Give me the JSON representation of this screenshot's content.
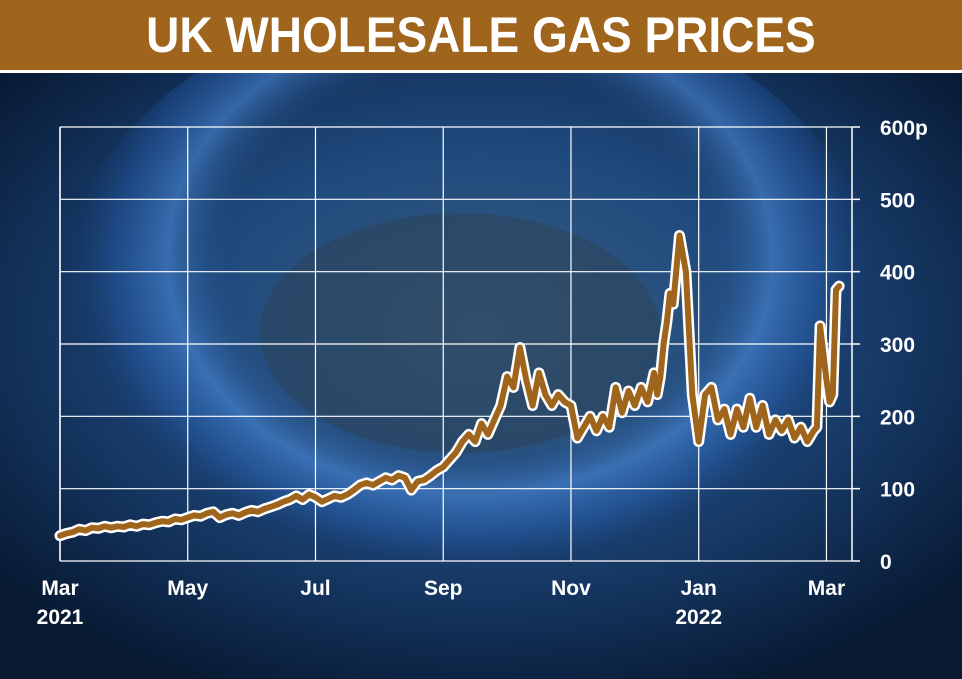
{
  "title": "UK WHOLESALE GAS PRICES",
  "colors": {
    "line": "#a0651c",
    "line_outline": "#ffffff",
    "grid": "#ffffff",
    "banner": "#a0651c"
  },
  "chart_data": {
    "type": "line",
    "title": "UK WHOLESALE GAS PRICES",
    "xlabel": "",
    "ylabel": "",
    "ylim": [
      0,
      600
    ],
    "xlim": [
      0,
      12.4
    ],
    "grid": true,
    "yticks": [
      {
        "value": 0,
        "label": "0"
      },
      {
        "value": 100,
        "label": "100"
      },
      {
        "value": 200,
        "label": "200"
      },
      {
        "value": 300,
        "label": "300"
      },
      {
        "value": 400,
        "label": "400"
      },
      {
        "value": 500,
        "label": "500"
      },
      {
        "value": 600,
        "label": "600p"
      }
    ],
    "xticks": [
      {
        "value": 0,
        "label": "Mar",
        "sublabel": "2021"
      },
      {
        "value": 2,
        "label": "May",
        "sublabel": ""
      },
      {
        "value": 4,
        "label": "Jul",
        "sublabel": ""
      },
      {
        "value": 6,
        "label": "Sep",
        "sublabel": ""
      },
      {
        "value": 8,
        "label": "Nov",
        "sublabel": ""
      },
      {
        "value": 10,
        "label": "Jan",
        "sublabel": "2022"
      },
      {
        "value": 12,
        "label": "Mar",
        "sublabel": ""
      }
    ],
    "series": [
      {
        "x": [
          0,
          0.1,
          0.2,
          0.3,
          0.4,
          0.5,
          0.6,
          0.7,
          0.8,
          0.9,
          1.0,
          1.1,
          1.2,
          1.3,
          1.4,
          1.5,
          1.6,
          1.7,
          1.8,
          1.9,
          2.0,
          2.1,
          2.2,
          2.3,
          2.4,
          2.5,
          2.6,
          2.7,
          2.8,
          2.9,
          3.0,
          3.1,
          3.2,
          3.3,
          3.4,
          3.5,
          3.6,
          3.7,
          3.8,
          3.9,
          4.0,
          4.1,
          4.2,
          4.3,
          4.4,
          4.5,
          4.6,
          4.7,
          4.8,
          4.9,
          5.0,
          5.1,
          5.2,
          5.3,
          5.4,
          5.5,
          5.6,
          5.7,
          5.8,
          5.9,
          6.0,
          6.1,
          6.2,
          6.3,
          6.4,
          6.5,
          6.6,
          6.7,
          6.8,
          6.9,
          7.0,
          7.1,
          7.2,
          7.3,
          7.4,
          7.5,
          7.6,
          7.7,
          7.8,
          7.9,
          8.0,
          8.1,
          8.2,
          8.3,
          8.4,
          8.5,
          8.6,
          8.7,
          8.8,
          8.9,
          9.0,
          9.1,
          9.2,
          9.3,
          9.35,
          9.4,
          9.45,
          9.5,
          9.55,
          9.6,
          9.7,
          9.8,
          9.9,
          10.0,
          10.1,
          10.2,
          10.3,
          10.4,
          10.5,
          10.6,
          10.7,
          10.8,
          10.9,
          11.0,
          11.1,
          11.2,
          11.3,
          11.4,
          11.5,
          11.6,
          11.7,
          11.8,
          11.85,
          11.9,
          12.0,
          12.05,
          12.1,
          12.15,
          12.2
        ],
        "values": [
          35,
          38,
          40,
          44,
          42,
          46,
          45,
          48,
          46,
          48,
          47,
          50,
          48,
          51,
          50,
          53,
          55,
          54,
          58,
          57,
          60,
          63,
          62,
          66,
          68,
          60,
          64,
          66,
          63,
          67,
          70,
          68,
          72,
          75,
          78,
          82,
          85,
          90,
          85,
          92,
          88,
          82,
          86,
          90,
          88,
          92,
          98,
          105,
          108,
          105,
          110,
          115,
          112,
          118,
          115,
          98,
          110,
          112,
          118,
          125,
          130,
          140,
          150,
          165,
          175,
          165,
          190,
          175,
          195,
          215,
          255,
          240,
          295,
          250,
          215,
          260,
          230,
          215,
          230,
          220,
          215,
          170,
          185,
          200,
          180,
          200,
          185,
          240,
          205,
          235,
          215,
          240,
          220,
          260,
          230,
          255,
          300,
          330,
          370,
          355,
          450,
          400,
          230,
          165,
          230,
          240,
          195,
          210,
          175,
          210,
          185,
          225,
          185,
          215,
          175,
          195,
          180,
          195,
          170,
          185,
          165,
          180,
          185,
          325,
          250,
          220,
          230,
          375,
          380
        ]
      }
    ]
  }
}
